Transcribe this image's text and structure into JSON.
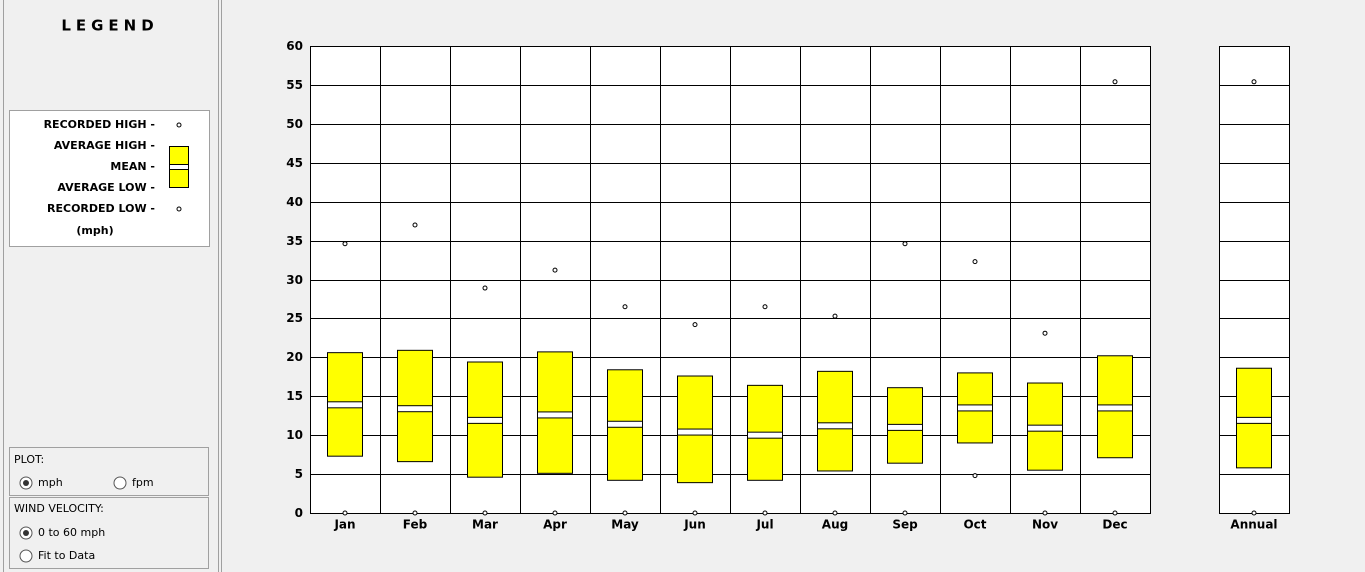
{
  "legend": {
    "title": "LEGEND",
    "items": [
      "RECORDED HIGH -",
      "AVERAGE HIGH -",
      "MEAN -",
      "AVERAGE LOW -",
      "RECORDED LOW -"
    ],
    "unit": "(mph)"
  },
  "plot": {
    "label": "PLOT:",
    "options": [
      "mph",
      "fpm"
    ],
    "selected": 0
  },
  "wind_velocity": {
    "label": "WIND VELOCITY:",
    "options": [
      "0 to 60 mph",
      "Fit to Data"
    ],
    "selected": 0
  },
  "chart_data": {
    "type": "box",
    "categories": [
      "Jan",
      "Feb",
      "Mar",
      "Apr",
      "May",
      "Jun",
      "Jul",
      "Aug",
      "Sep",
      "Oct",
      "Nov",
      "Dec",
      "Annual"
    ],
    "recorded_high": [
      34.6,
      37,
      28.9,
      31.2,
      26.5,
      24.2,
      26.5,
      25.3,
      34.6,
      32.3,
      23.1,
      55.4,
      55.4
    ],
    "average_high": [
      20.6,
      20.9,
      19.4,
      20.7,
      18.4,
      17.6,
      16.4,
      18.2,
      16.1,
      18.0,
      16.7,
      20.2,
      18.6
    ],
    "mean": [
      13.9,
      13.4,
      11.9,
      12.6,
      11.4,
      10.4,
      10.0,
      11.2,
      11.0,
      13.5,
      10.9,
      13.5,
      11.9
    ],
    "average_low": [
      7.3,
      6.6,
      4.6,
      5.1,
      4.2,
      3.9,
      4.2,
      5.4,
      6.4,
      9.0,
      5.5,
      7.1,
      5.8
    ],
    "recorded_low": [
      0,
      0,
      0,
      0,
      0,
      0,
      0,
      0,
      0,
      4.8,
      0,
      0,
      0
    ],
    "color": "#ffff00",
    "ylim": [
      0,
      60
    ],
    "yticks": [
      0,
      5,
      10,
      15,
      20,
      25,
      30,
      35,
      40,
      45,
      50,
      55,
      60
    ],
    "grid": true
  }
}
